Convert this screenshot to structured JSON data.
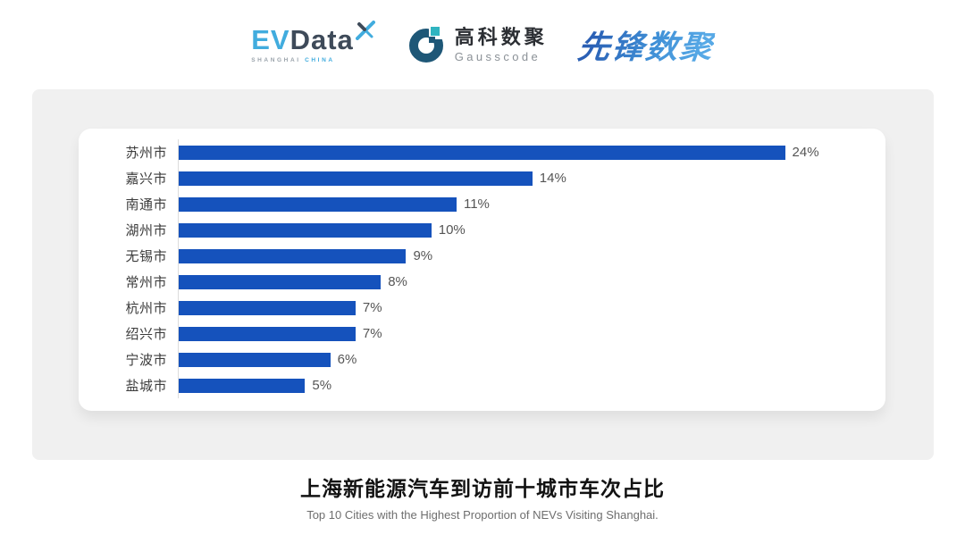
{
  "header": {
    "evdata_logo": {
      "ev": "EV",
      "data": "Data",
      "sub_left": "SHANGHAI",
      "sub_right": "CHINA",
      "cyan": "#41ACDE",
      "dark": "#3E4A59"
    },
    "gausscode_logo": {
      "cn": "高科数聚",
      "en": "Gausscode",
      "mark_dark": "#1E5777",
      "mark_accent": "#2FB4C0"
    },
    "pioneer_logo": {
      "text": "先锋数聚",
      "color": "#3579C6"
    }
  },
  "chart_data": {
    "type": "bar",
    "orientation": "horizontal",
    "title": "上海新能源汽车到访前十城市车次占比",
    "subtitle": "Top 10 Cities with the Highest Proportion of  NEVs Visiting Shanghai.",
    "categories": [
      "苏州市",
      "嘉兴市",
      "南通市",
      "湖州市",
      "无锡市",
      "常州市",
      "杭州市",
      "绍兴市",
      "宁波市",
      "盐城市"
    ],
    "values": [
      24,
      14,
      11,
      10,
      9,
      8,
      7,
      7,
      6,
      5
    ],
    "value_suffix": "%",
    "xlim": [
      0,
      24
    ],
    "grid": false,
    "legend": "none",
    "value_labels": "end-of-bar",
    "bar_color": "#1552BC",
    "axis_line_color": "#dcdcdc",
    "label_color": "#3c3c3c",
    "value_label_color": "#555555"
  }
}
